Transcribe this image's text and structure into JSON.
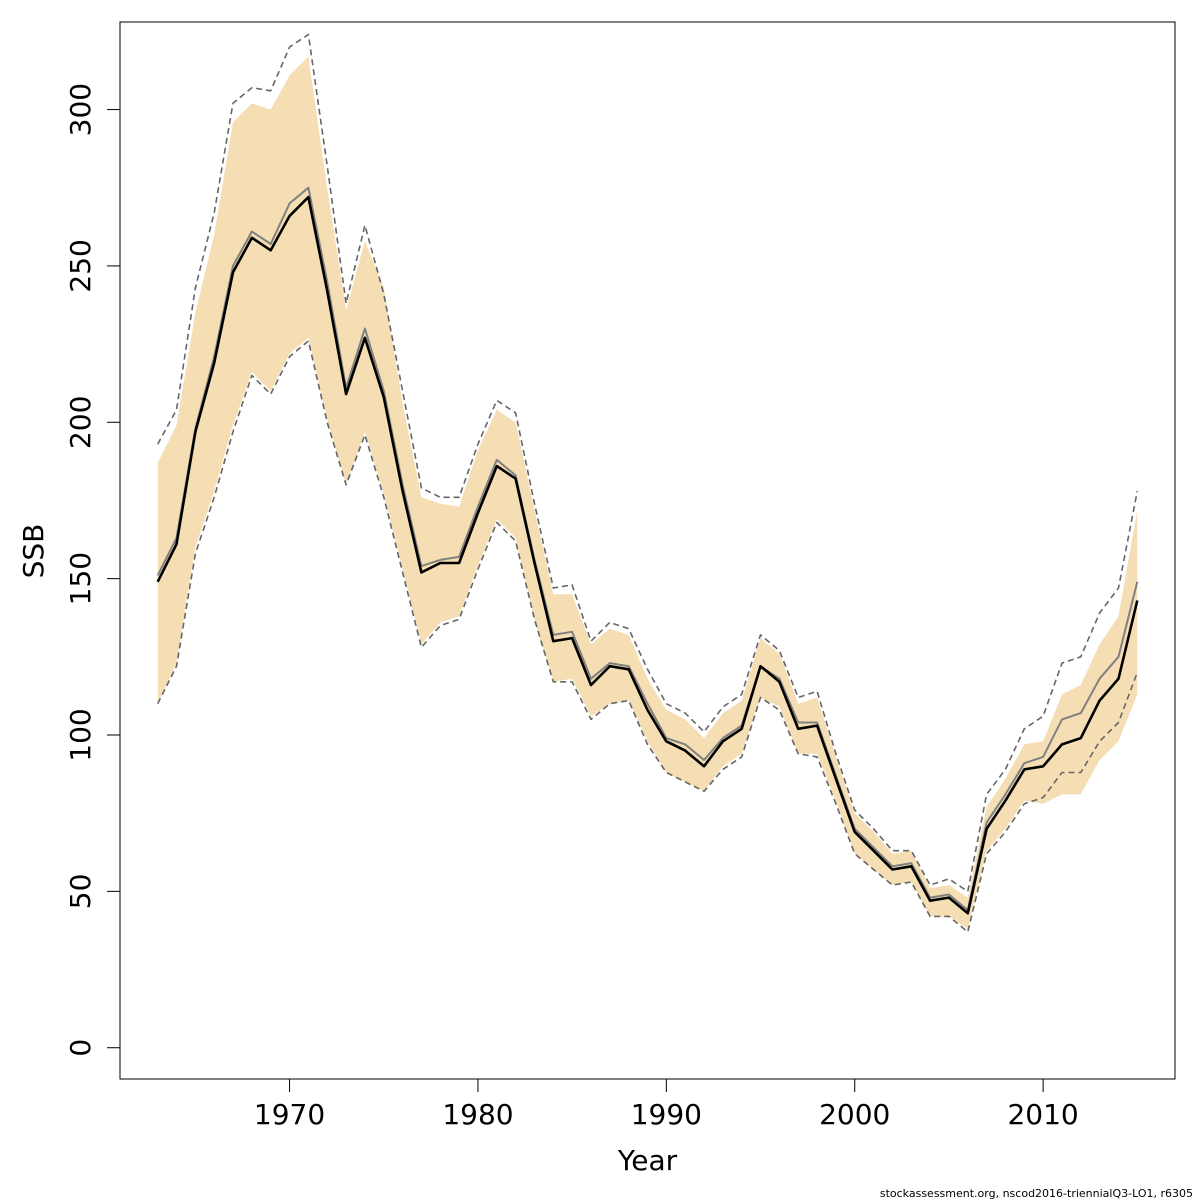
{
  "chart_data": {
    "type": "line",
    "xlabel": "Year",
    "ylabel": "SSB",
    "xlim": [
      1961,
      2017
    ],
    "ylim": [
      -10,
      328
    ],
    "x_ticks": [
      1970,
      1980,
      1990,
      2000,
      2010
    ],
    "y_ticks": [
      0,
      50,
      100,
      150,
      200,
      250,
      300
    ],
    "grid": false,
    "colors": {
      "band": "#f5deb3",
      "main_line": "#000000",
      "secondary_line": "#808080",
      "dashed_line": "#666666"
    },
    "x": [
      1963,
      1964,
      1965,
      1966,
      1967,
      1968,
      1969,
      1970,
      1971,
      1972,
      1973,
      1974,
      1975,
      1976,
      1977,
      1978,
      1979,
      1980,
      1981,
      1982,
      1983,
      1984,
      1985,
      1986,
      1987,
      1988,
      1989,
      1990,
      1991,
      1992,
      1993,
      1994,
      1995,
      1996,
      1997,
      1998,
      1999,
      2000,
      2001,
      2002,
      2003,
      2004,
      2005,
      2006,
      2007,
      2008,
      2009,
      2010,
      2011,
      2012,
      2013,
      2014,
      2015
    ],
    "series": [
      {
        "role": "estimate",
        "style": "solid-black",
        "values": [
          149,
          161,
          197,
          219,
          248,
          259,
          255,
          266,
          272,
          242,
          209,
          227,
          208,
          178,
          152,
          155,
          155,
          171,
          186,
          182,
          155,
          130,
          131,
          116,
          122,
          121,
          108,
          98,
          95,
          90,
          98,
          102,
          122,
          117,
          102,
          103,
          86,
          69,
          63,
          57,
          58,
          47,
          48,
          43,
          70,
          79,
          89,
          90,
          97,
          99,
          111,
          118,
          143
        ]
      },
      {
        "role": "alternative-estimate",
        "style": "solid-gray",
        "values": [
          151,
          163,
          198,
          221,
          250,
          261,
          257,
          270,
          275,
          245,
          211,
          230,
          210,
          180,
          154,
          156,
          157,
          173,
          188,
          183,
          156,
          132,
          133,
          118,
          123,
          122,
          110,
          99,
          97,
          92,
          99,
          103,
          122,
          118,
          104,
          104,
          87,
          70,
          64,
          58,
          59,
          48,
          49,
          44,
          72,
          81,
          91,
          93,
          105,
          107,
          118,
          125,
          149
        ]
      },
      {
        "role": "band-lower",
        "values": [
          110,
          123,
          160,
          178,
          199,
          216,
          210,
          222,
          227,
          201,
          180,
          197,
          177,
          153,
          129,
          136,
          138,
          154,
          169,
          163,
          137,
          117,
          118,
          106,
          110,
          111,
          98,
          88,
          85,
          82,
          90,
          94,
          112,
          109,
          94,
          94,
          79,
          62,
          57,
          52,
          53,
          42,
          42,
          38,
          63,
          70,
          79,
          78,
          81,
          81,
          92,
          98,
          113
        ]
      },
      {
        "role": "band-upper",
        "values": [
          187,
          199,
          235,
          260,
          296,
          302,
          300,
          311,
          317,
          275,
          236,
          258,
          243,
          206,
          176,
          174,
          173,
          191,
          204,
          200,
          172,
          145,
          145,
          129,
          134,
          132,
          118,
          108,
          105,
          99,
          107,
          111,
          131,
          126,
          110,
          112,
          93,
          75,
          69,
          62,
          63,
          51,
          52,
          48,
          77,
          86,
          97,
          98,
          113,
          116,
          129,
          138,
          172
        ]
      },
      {
        "role": "dashed-lower",
        "style": "dashed",
        "values": [
          110,
          122,
          158,
          176,
          197,
          215,
          209,
          221,
          226,
          200,
          180,
          196,
          176,
          152,
          128,
          135,
          137,
          153,
          168,
          162,
          137,
          117,
          117,
          105,
          110,
          111,
          97,
          88,
          85,
          82,
          89,
          93,
          112,
          108,
          94,
          93,
          78,
          62,
          57,
          52,
          53,
          42,
          42,
          37,
          62,
          69,
          78,
          80,
          88,
          88,
          98,
          104,
          120
        ]
      },
      {
        "role": "dashed-upper",
        "style": "dashed",
        "values": [
          193,
          204,
          243,
          267,
          302,
          307,
          306,
          320,
          324,
          282,
          238,
          263,
          241,
          210,
          179,
          176,
          176,
          193,
          207,
          203,
          174,
          147,
          148,
          130,
          136,
          134,
          121,
          110,
          107,
          101,
          109,
          113,
          132,
          127,
          112,
          114,
          94,
          76,
          70,
          63,
          63,
          52,
          54,
          50,
          81,
          89,
          102,
          106,
          123,
          125,
          139,
          147,
          178
        ]
      }
    ]
  },
  "footer": {
    "note": "stockassessment.org, nscod2016-triennialQ3-LO1, r6305"
  }
}
